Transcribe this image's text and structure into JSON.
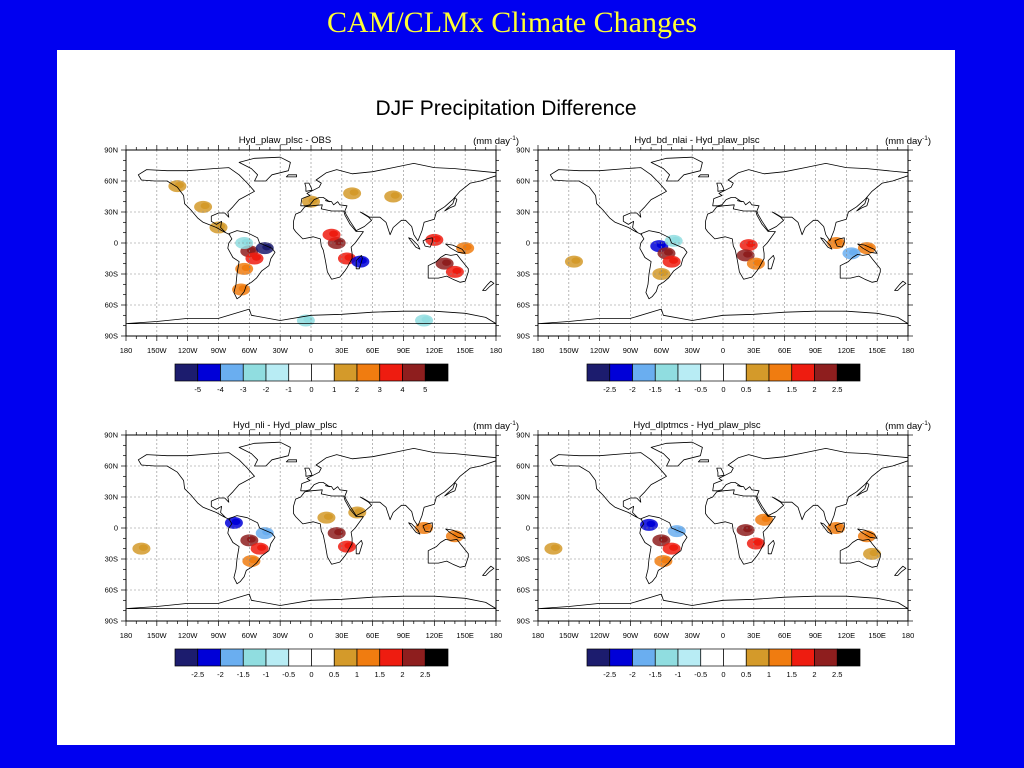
{
  "slide": {
    "title": "CAM/CLMx Climate Changes"
  },
  "figure": {
    "title": "DJF Precipitation Difference"
  },
  "axes": {
    "lat_labels": [
      "90N",
      "60N",
      "30N",
      "0",
      "30S",
      "60S",
      "90S"
    ],
    "lon_labels": [
      "180",
      "150W",
      "120W",
      "90W",
      "60W",
      "30W",
      "0",
      "30E",
      "60E",
      "90E",
      "120E",
      "150E",
      "180"
    ]
  },
  "colors": {
    "scale": [
      "#1c1c6e",
      "#0000d8",
      "#6aaef0",
      "#90dde0",
      "#b8ecf4",
      "#ffffff",
      "#ffffff",
      "#d49a2a",
      "#f07c10",
      "#ee1c10",
      "#8e1e1e",
      "#000000"
    ],
    "background": "#0000f0",
    "title": "#ffff33"
  },
  "chart_data": [
    {
      "type": "heatmap",
      "title": "Hyd_plaw_plsc - OBS",
      "units_base": "(mm day",
      "units_exp": "-1",
      "units_close": ")",
      "colorbar_labels": [
        "-5",
        "-4",
        "-3",
        "-2",
        "-1",
        "0",
        "1",
        "2",
        "3",
        "4",
        "5"
      ],
      "ylim": [
        -90,
        90
      ],
      "xlim": [
        -180,
        180
      ],
      "anomalies": [
        {
          "lon": -60,
          "lat": -8,
          "level": 10
        },
        {
          "lon": -55,
          "lat": -15,
          "level": 9
        },
        {
          "lon": -45,
          "lat": -5,
          "level": 0
        },
        {
          "lon": -65,
          "lat": -25,
          "level": 8
        },
        {
          "lon": -65,
          "lat": 0,
          "level": 3
        },
        {
          "lon": -68,
          "lat": -45,
          "level": 8
        },
        {
          "lon": -90,
          "lat": 15,
          "level": 7
        },
        {
          "lon": -130,
          "lat": 55,
          "level": 7
        },
        {
          "lon": -105,
          "lat": 35,
          "level": 7
        },
        {
          "lon": 25,
          "lat": 0,
          "level": 10
        },
        {
          "lon": 35,
          "lat": -15,
          "level": 9
        },
        {
          "lon": 20,
          "lat": 8,
          "level": 9
        },
        {
          "lon": 48,
          "lat": -18,
          "level": 1
        },
        {
          "lon": 40,
          "lat": 48,
          "level": 7
        },
        {
          "lon": 0,
          "lat": 40,
          "level": 7
        },
        {
          "lon": 80,
          "lat": 45,
          "level": 7
        },
        {
          "lon": 130,
          "lat": -20,
          "level": 10
        },
        {
          "lon": 140,
          "lat": -28,
          "level": 9
        },
        {
          "lon": 120,
          "lat": 3,
          "level": 9
        },
        {
          "lon": 150,
          "lat": -5,
          "level": 8
        },
        {
          "lon": -5,
          "lat": -75,
          "level": 3
        },
        {
          "lon": 110,
          "lat": -75,
          "level": 3
        }
      ]
    },
    {
      "type": "heatmap",
      "title": "Hyd_bd_nlai - Hyd_plaw_plsc",
      "units_base": "(mm day",
      "units_exp": "-1",
      "units_close": ")",
      "colorbar_labels": [
        "-2.5",
        "-2",
        "-1.5",
        "-1",
        "-0.5",
        "0",
        "0.5",
        "1",
        "1.5",
        "2",
        "2.5"
      ],
      "ylim": [
        -90,
        90
      ],
      "xlim": [
        -180,
        180
      ],
      "anomalies": [
        {
          "lon": -62,
          "lat": -3,
          "level": 1
        },
        {
          "lon": -55,
          "lat": -10,
          "level": 10
        },
        {
          "lon": -50,
          "lat": -18,
          "level": 9
        },
        {
          "lon": -60,
          "lat": -30,
          "level": 7
        },
        {
          "lon": -48,
          "lat": 2,
          "level": 3
        },
        {
          "lon": 25,
          "lat": -2,
          "level": 9
        },
        {
          "lon": 22,
          "lat": -12,
          "level": 10
        },
        {
          "lon": 32,
          "lat": -20,
          "level": 8
        },
        {
          "lon": 110,
          "lat": 0,
          "level": 8
        },
        {
          "lon": 140,
          "lat": -5,
          "level": 8
        },
        {
          "lon": 125,
          "lat": -10,
          "level": 2
        },
        {
          "lon": -145,
          "lat": -18,
          "level": 7
        }
      ]
    },
    {
      "type": "heatmap",
      "title": "Hyd_nli - Hyd_plaw_plsc",
      "units_base": "(mm day",
      "units_exp": "-1",
      "units_close": ")",
      "colorbar_labels": [
        "-2.5",
        "-2",
        "-1.5",
        "-1",
        "-0.5",
        "0",
        "0.5",
        "1",
        "1.5",
        "2",
        "2.5"
      ],
      "ylim": [
        -90,
        90
      ],
      "xlim": [
        -180,
        180
      ],
      "anomalies": [
        {
          "lon": -75,
          "lat": 5,
          "level": 1
        },
        {
          "lon": -60,
          "lat": -12,
          "level": 10
        },
        {
          "lon": -50,
          "lat": -20,
          "level": 9
        },
        {
          "lon": -58,
          "lat": -32,
          "level": 8
        },
        {
          "lon": -45,
          "lat": -5,
          "level": 2
        },
        {
          "lon": 25,
          "lat": -5,
          "level": 10
        },
        {
          "lon": 35,
          "lat": -18,
          "level": 9
        },
        {
          "lon": 15,
          "lat": 10,
          "level": 7
        },
        {
          "lon": 45,
          "lat": 15,
          "level": 7
        },
        {
          "lon": 110,
          "lat": 0,
          "level": 8
        },
        {
          "lon": 140,
          "lat": -8,
          "level": 8
        },
        {
          "lon": -165,
          "lat": -20,
          "level": 7
        }
      ]
    },
    {
      "type": "heatmap",
      "title": "Hyd_dlptmcs - Hyd_plaw_plsc",
      "units_base": "(mm day",
      "units_exp": "-1",
      "units_close": ")",
      "colorbar_labels": [
        "-2.5",
        "-2",
        "-1.5",
        "-1",
        "-0.5",
        "0",
        "0.5",
        "1",
        "1.5",
        "2",
        "2.5"
      ],
      "ylim": [
        -90,
        90
      ],
      "xlim": [
        -180,
        180
      ],
      "anomalies": [
        {
          "lon": -72,
          "lat": 3,
          "level": 1
        },
        {
          "lon": -60,
          "lat": -12,
          "level": 10
        },
        {
          "lon": -50,
          "lat": -20,
          "level": 9
        },
        {
          "lon": -58,
          "lat": -32,
          "level": 8
        },
        {
          "lon": -45,
          "lat": -3,
          "level": 2
        },
        {
          "lon": 22,
          "lat": -2,
          "level": 10
        },
        {
          "lon": 32,
          "lat": -15,
          "level": 9
        },
        {
          "lon": 40,
          "lat": 8,
          "level": 8
        },
        {
          "lon": 110,
          "lat": 0,
          "level": 8
        },
        {
          "lon": 140,
          "lat": -8,
          "level": 8
        },
        {
          "lon": 145,
          "lat": -25,
          "level": 7
        },
        {
          "lon": -165,
          "lat": -20,
          "level": 7
        }
      ]
    }
  ]
}
